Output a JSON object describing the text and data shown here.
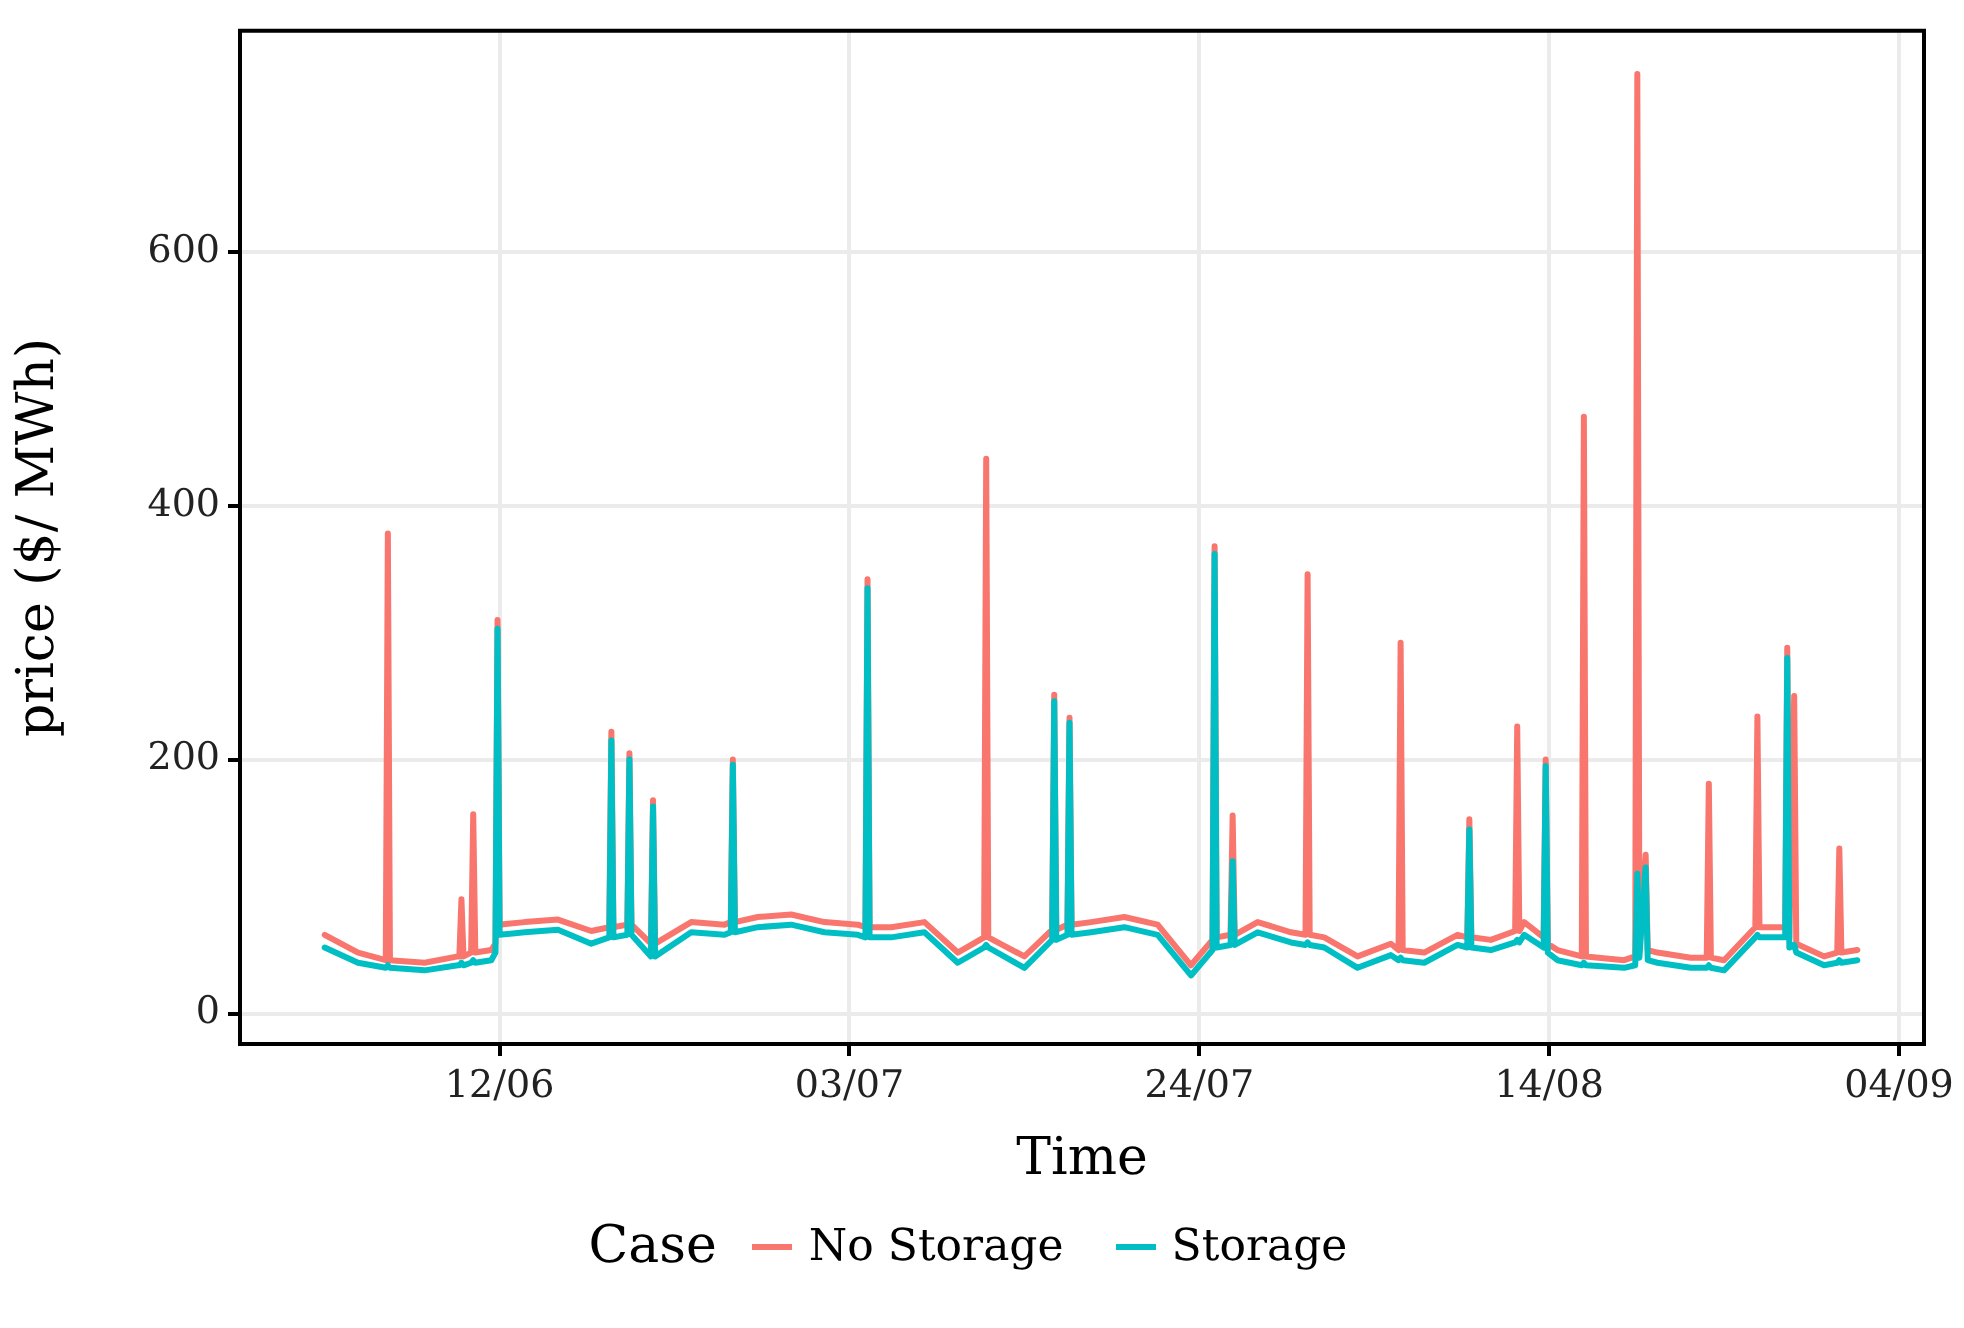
{
  "chart_data": {
    "type": "line",
    "xlabel": "Time",
    "ylabel": "price ($/ MWh)",
    "legend_title": "Case",
    "legend": "bottom",
    "grid": true,
    "marker": "none",
    "line_style": "solid",
    "xlim": [
      "--05-27T10:00",
      "--09-05T12:00"
    ],
    "xticks": [
      {
        "value": "--06-12",
        "label": "12/06"
      },
      {
        "value": "--07-03",
        "label": "03/07"
      },
      {
        "value": "--07-24",
        "label": "24/07"
      },
      {
        "value": "--08-14",
        "label": "14/08"
      },
      {
        "value": "--09-04",
        "label": "04/09"
      }
    ],
    "ylim": [
      -24,
      774
    ],
    "yticks": [
      0,
      200,
      400,
      600
    ],
    "x": [
      "--06-01T12:00",
      "--06-03T12:00",
      "--06-05T04:00",
      "--06-05T07:00",
      "--06-05T10:00",
      "--06-07T12:00",
      "--06-09T12:00",
      "--06-09T14:00",
      "--06-09T17:00",
      "--06-09T20:00",
      "--06-10T07:00",
      "--06-10T10:00",
      "--06-10T13:00",
      "--06-11T12:00",
      "--06-11T18:00",
      "--06-11T21:00",
      "--06-12T00:00",
      "--06-13T12:00",
      "--06-15T12:00",
      "--06-17T12:00",
      "--06-18T14:00",
      "--06-18T17:00",
      "--06-18T20:00",
      "--06-19T16:00",
      "--06-19T19:00",
      "--06-19T22:00",
      "--06-21T02:00",
      "--06-21T05:00",
      "--06-21T08:00",
      "--06-23T12:00",
      "--06-25T12:00",
      "--06-25T21:00",
      "--06-26T00:00",
      "--06-26T03:00",
      "--06-27T12:00",
      "--06-29T12:00",
      "--07-01T12:00",
      "--07-03T12:00",
      "--07-03T23:00",
      "--07-04T02:00",
      "--07-04T05:00",
      "--07-05T12:00",
      "--07-07T12:00",
      "--07-09T12:00",
      "--07-11T02:00",
      "--07-11T05:00",
      "--07-11T08:00",
      "--07-13T12:00",
      "--07-15T04:00",
      "--07-15T07:00",
      "--07-15T10:00",
      "--07-16T02:00",
      "--07-16T05:00",
      "--07-16T08:00",
      "--07-17T12:00",
      "--07-19T12:00",
      "--07-21T12:00",
      "--07-23T12:00",
      "--07-24T19:00",
      "--07-24T22:00",
      "--07-25T01:00",
      "--07-25T21:00",
      "--07-26T00:00",
      "--07-26T03:00",
      "--07-27T12:00",
      "--07-29T12:00",
      "--07-30T09:00",
      "--07-30T12:00",
      "--07-30T15:00",
      "--07-31T12:00",
      "--08-02T12:00",
      "--08-04T12:00",
      "--08-04T23:00",
      "--08-05T02:00",
      "--08-05T05:00",
      "--08-06T12:00",
      "--08-08T12:00",
      "--08-09T02:00",
      "--08-09T05:00",
      "--08-09T08:00",
      "--08-10T12:00",
      "--08-11T23:00",
      "--08-12T02:00",
      "--08-12T05:00",
      "--08-12T12:00",
      "--08-13T16:00",
      "--08-13T19:00",
      "--08-13T22:00",
      "--08-14T12:00",
      "--08-15T23:00",
      "--08-16T02:00",
      "--08-16T05:00",
      "--08-18T12:00",
      "--08-19T04:00",
      "--08-19T07:00",
      "--08-19T10:00",
      "--08-19T19:00",
      "--08-19T22:00",
      "--08-20T12:00",
      "--08-22T12:00",
      "--08-23T11:00",
      "--08-23T14:00",
      "--08-23T17:00",
      "--08-24T12:00",
      "--08-26T09:00",
      "--08-26T12:00",
      "--08-26T15:00",
      "--08-28T04:00",
      "--08-28T07:00",
      "--08-28T10:00",
      "--08-28T17:00",
      "--08-28T20:00",
      "--08-30T12:00",
      "--08-31T07:00",
      "--08-31T10:00",
      "--08-31T13:00",
      "--09-01T12:00"
    ],
    "series": [
      {
        "name": "No Storage",
        "color": "#f8766d",
        "values": [
          62,
          48,
          42,
          378,
          42,
          40,
          45,
          45,
          90,
          45,
          48,
          157,
          48,
          50,
          55,
          310,
          70,
          72,
          74,
          65,
          68,
          222,
          68,
          70,
          205,
          70,
          55,
          168,
          55,
          72,
          70,
          72,
          200,
          72,
          76,
          78,
          72,
          70,
          68,
          342,
          68,
          68,
          72,
          48,
          60,
          437,
          60,
          45,
          66,
          251,
          66,
          70,
          233,
          70,
          72,
          76,
          70,
          38,
          58,
          368,
          60,
          62,
          156,
          62,
          72,
          64,
          62,
          346,
          62,
          60,
          45,
          55,
          50,
          292,
          50,
          48,
          62,
          60,
          153,
          60,
          58,
          65,
          226,
          65,
          72,
          60,
          200,
          55,
          50,
          45,
          470,
          45,
          42,
          45,
          740,
          50,
          125,
          50,
          48,
          44,
          44,
          181,
          44,
          42,
          68,
          234,
          68,
          68,
          288,
          60,
          250,
          55,
          45,
          48,
          130,
          48,
          50
        ]
      },
      {
        "name": "Storage",
        "color": "#00bfc4",
        "values": [
          52,
          40,
          36,
          38,
          36,
          34,
          38,
          38,
          40,
          38,
          40,
          42,
          40,
          42,
          48,
          303,
          62,
          64,
          66,
          55,
          60,
          215,
          60,
          62,
          200,
          62,
          45,
          163,
          45,
          64,
          62,
          64,
          196,
          64,
          68,
          70,
          64,
          62,
          60,
          335,
          60,
          60,
          64,
          40,
          52,
          54,
          52,
          36,
          58,
          246,
          58,
          62,
          229,
          62,
          64,
          68,
          62,
          30,
          50,
          362,
          52,
          54,
          120,
          54,
          64,
          56,
          54,
          56,
          54,
          52,
          36,
          46,
          42,
          44,
          42,
          40,
          54,
          52,
          145,
          52,
          50,
          56,
          58,
          56,
          62,
          52,
          195,
          48,
          42,
          38,
          40,
          38,
          36,
          38,
          110,
          44,
          115,
          42,
          40,
          36,
          36,
          38,
          36,
          34,
          60,
          62,
          60,
          60,
          280,
          52,
          54,
          48,
          38,
          40,
          42,
          40,
          42
        ]
      }
    ]
  }
}
